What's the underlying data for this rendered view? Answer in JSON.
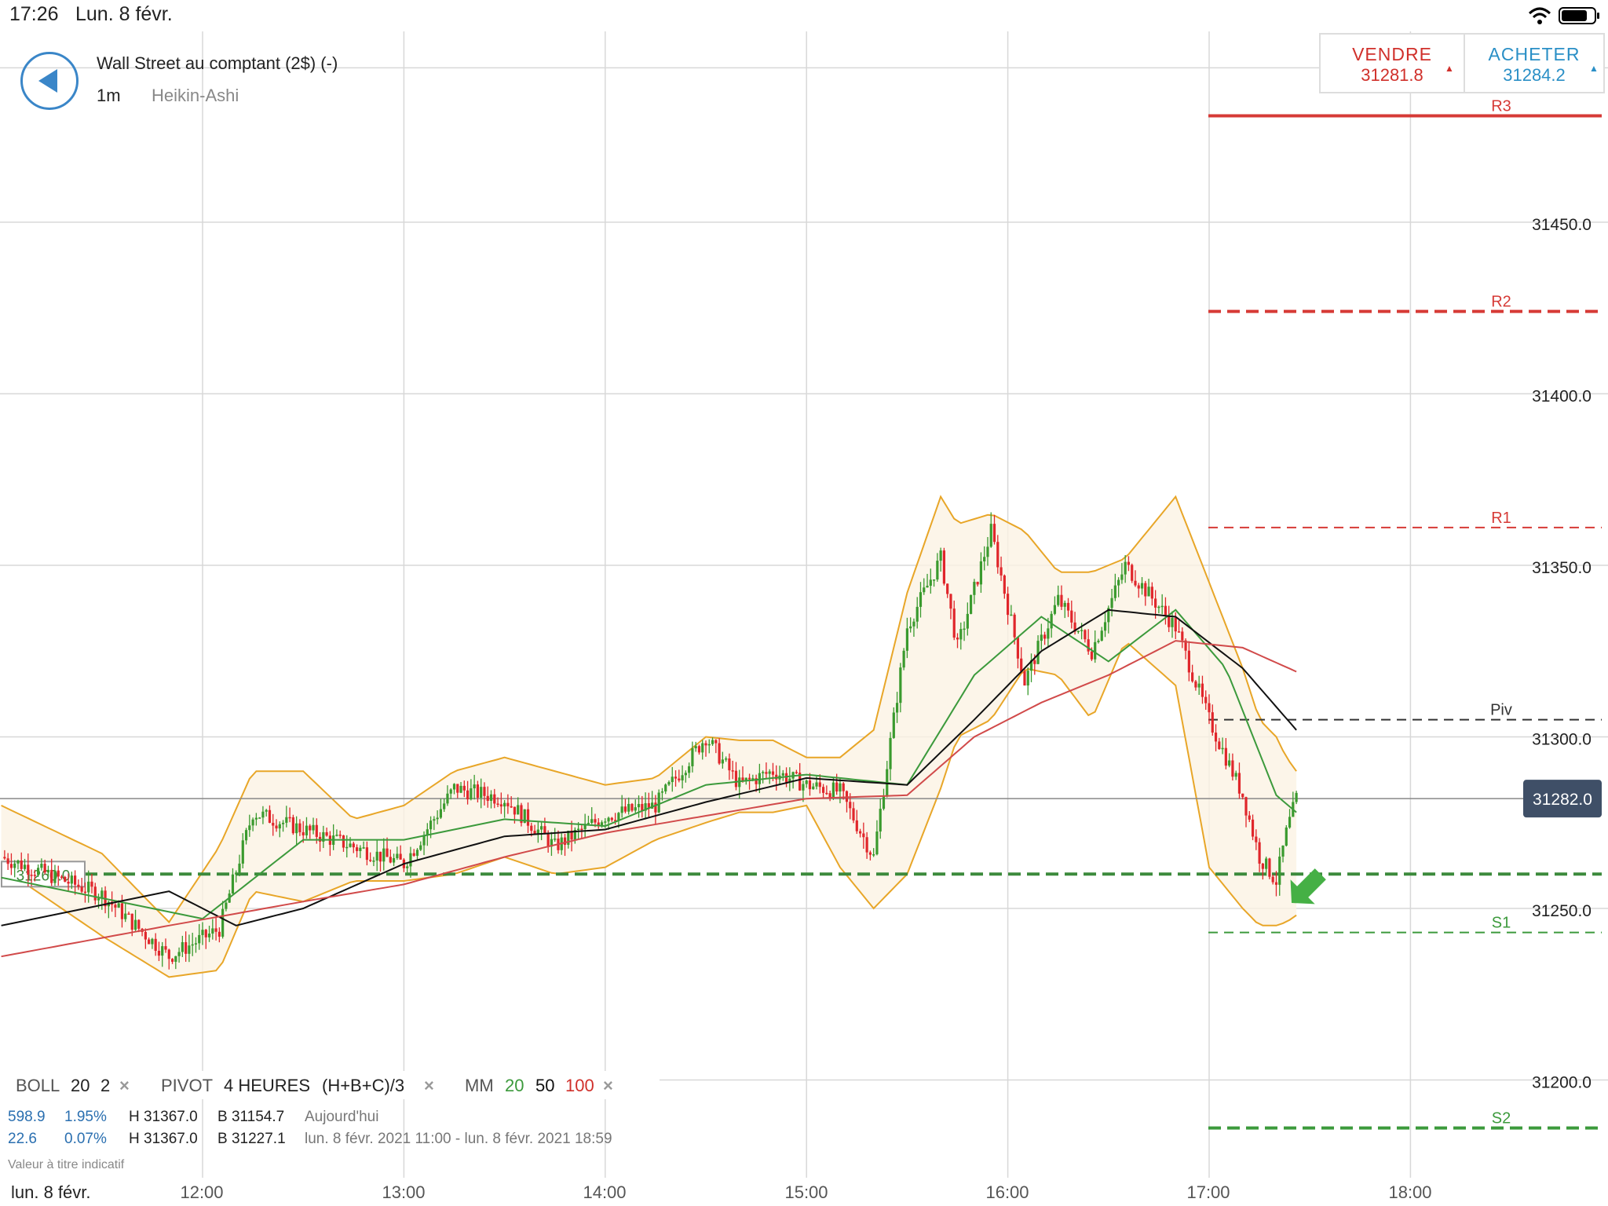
{
  "status_bar": {
    "time": "17:26",
    "date": "Lun. 8 févr."
  },
  "header": {
    "title": "Wall Street au comptant (2$) (-)",
    "timeframe": "1m",
    "chart_type": "Heikin-Ashi"
  },
  "trade": {
    "sell_label": "VENDRE",
    "sell_price": "31281.8",
    "buy_label": "ACHETER",
    "buy_price": "31284.2",
    "sell_color": "#d0302b",
    "buy_color": "#2a8fc6"
  },
  "legend": {
    "boll_name": "BOLL",
    "boll_p1": "20",
    "boll_p2": "2",
    "pivot_name": "PIVOT",
    "pivot_period": "4 HEURES",
    "pivot_formula": "(H+B+C)/3",
    "mm_name": "MM",
    "mm_1": "20",
    "mm_2": "50",
    "mm_3": "100",
    "remove_glyph": "×"
  },
  "info_rows": [
    {
      "v1": "598.9",
      "v2": "1.95%",
      "high": "H 31367.0",
      "low": "B 31154.7",
      "period": "Aujourd'hui"
    },
    {
      "v1": "22.6",
      "v2": "0.07%",
      "high": "H 31367.0",
      "low": "B 31227.1",
      "period": "lun. 8 févr. 2021 11:00 - lun. 8 févr. 2021 18:59"
    }
  ],
  "indicative_note": "Valeur à titre indicatif",
  "bottom_date": "lun. 8 févr.",
  "chart_data": {
    "type": "candlestick",
    "style": "Heikin-Ashi",
    "ylim": [
      31190,
      31495
    ],
    "y_ticks": [
      "31200.0",
      "31250.0",
      "31300.0",
      "31350.0",
      "31400.0",
      "31450.0"
    ],
    "x_ticks": [
      "12:00",
      "13:00",
      "14:00",
      "15:00",
      "16:00",
      "17:00",
      "18:00"
    ],
    "current_price": 31282.0,
    "current_price_label": "31282.0",
    "reference_level": 31260.0,
    "reference_label": "31260.0",
    "pivot_levels": [
      {
        "name": "R3",
        "value": 31481,
        "color": "#d63a36"
      },
      {
        "name": "R2",
        "value": 31424,
        "color": "#d63a36"
      },
      {
        "name": "R1",
        "value": 31361,
        "color": "#d63a36"
      },
      {
        "name": "Piv",
        "value": 31305,
        "color": "#333333"
      },
      {
        "name": "S1",
        "value": 31243,
        "color": "#3c9a3c"
      },
      {
        "name": "S2",
        "value": 31186,
        "color": "#3c9a3c"
      }
    ],
    "price_series": {
      "time": [
        "11:00",
        "11:30",
        "11:50",
        "12:05",
        "12:15",
        "12:30",
        "12:45",
        "13:00",
        "13:15",
        "13:30",
        "13:45",
        "14:00",
        "14:15",
        "14:30",
        "14:40",
        "14:50",
        "15:00",
        "15:10",
        "15:20",
        "15:30",
        "15:40",
        "15:45",
        "15:55",
        "16:05",
        "16:15",
        "16:25",
        "16:35",
        "16:50",
        "17:00",
        "17:10",
        "17:15",
        "17:20",
        "17:23",
        "17:26"
      ],
      "close": [
        31265,
        31254,
        31236,
        31244,
        31278,
        31273,
        31268,
        31263,
        31285,
        31282,
        31268,
        31277,
        31280,
        31300,
        31286,
        31290,
        31286,
        31284,
        31265,
        31332,
        31352,
        31326,
        31360,
        31316,
        31340,
        31325,
        31350,
        31332,
        31305,
        31283,
        31265,
        31258,
        31272,
        31282
      ]
    },
    "bollinger_bands": {
      "time": [
        "11:00",
        "11:30",
        "11:50",
        "12:05",
        "12:15",
        "12:30",
        "12:45",
        "13:00",
        "13:15",
        "13:30",
        "13:45",
        "14:00",
        "14:15",
        "14:30",
        "14:40",
        "14:50",
        "15:00",
        "15:10",
        "15:20",
        "15:30",
        "15:40",
        "15:45",
        "15:55",
        "16:05",
        "16:15",
        "16:25",
        "16:35",
        "16:50",
        "17:00",
        "17:10",
        "17:15",
        "17:20",
        "17:23",
        "17:26"
      ],
      "upper": [
        31280,
        31266,
        31246,
        31268,
        31290,
        31290,
        31276,
        31280,
        31290,
        31294,
        31290,
        31286,
        31288,
        31300,
        31299,
        31299,
        31294,
        31294,
        31302,
        31342,
        31370,
        31362,
        31365,
        31360,
        31348,
        31348,
        31352,
        31370,
        31345,
        31320,
        31305,
        31300,
        31294,
        31290
      ],
      "lower": [
        31262,
        31242,
        31230,
        31232,
        31255,
        31252,
        31258,
        31258,
        31260,
        31265,
        31260,
        31262,
        31270,
        31275,
        31278,
        31278,
        31280,
        31262,
        31250,
        31260,
        31285,
        31300,
        31305,
        31320,
        31318,
        31305,
        31328,
        31315,
        31262,
        31250,
        31245,
        31245,
        31246,
        31248
      ]
    },
    "moving_averages": [
      {
        "period": "20",
        "color": "#3c9a3c",
        "time": [
          "11:00",
          "12:00",
          "12:30",
          "13:00",
          "13:30",
          "14:00",
          "14:30",
          "15:00",
          "15:30",
          "15:50",
          "16:10",
          "16:30",
          "16:50",
          "17:05",
          "17:20",
          "17:26"
        ],
        "values": [
          31259,
          31247,
          31270,
          31270,
          31276,
          31274,
          31286,
          31289,
          31286,
          31318,
          31335,
          31322,
          31337,
          31320,
          31283,
          31278
        ]
      },
      {
        "period": "50",
        "color": "#111111",
        "time": [
          "11:00",
          "11:50",
          "12:10",
          "12:30",
          "13:00",
          "13:30",
          "14:00",
          "14:30",
          "15:00",
          "15:30",
          "15:50",
          "16:10",
          "16:30",
          "16:50",
          "17:10",
          "17:26"
        ],
        "values": [
          31245,
          31255,
          31245,
          31250,
          31263,
          31271,
          31273,
          31281,
          31288,
          31286,
          31305,
          31325,
          31337,
          31335,
          31320,
          31302
        ]
      },
      {
        "period": "100",
        "color": "#d14a4a",
        "time": [
          "11:00",
          "11:50",
          "12:30",
          "13:00",
          "13:30",
          "14:00",
          "14:30",
          "15:00",
          "15:30",
          "15:50",
          "16:10",
          "16:30",
          "16:50",
          "17:10",
          "17:26"
        ],
        "values": [
          31236,
          31245,
          31252,
          31257,
          31265,
          31272,
          31277,
          31282,
          31283,
          31300,
          31310,
          31318,
          31328,
          31326,
          31319
        ]
      }
    ]
  }
}
